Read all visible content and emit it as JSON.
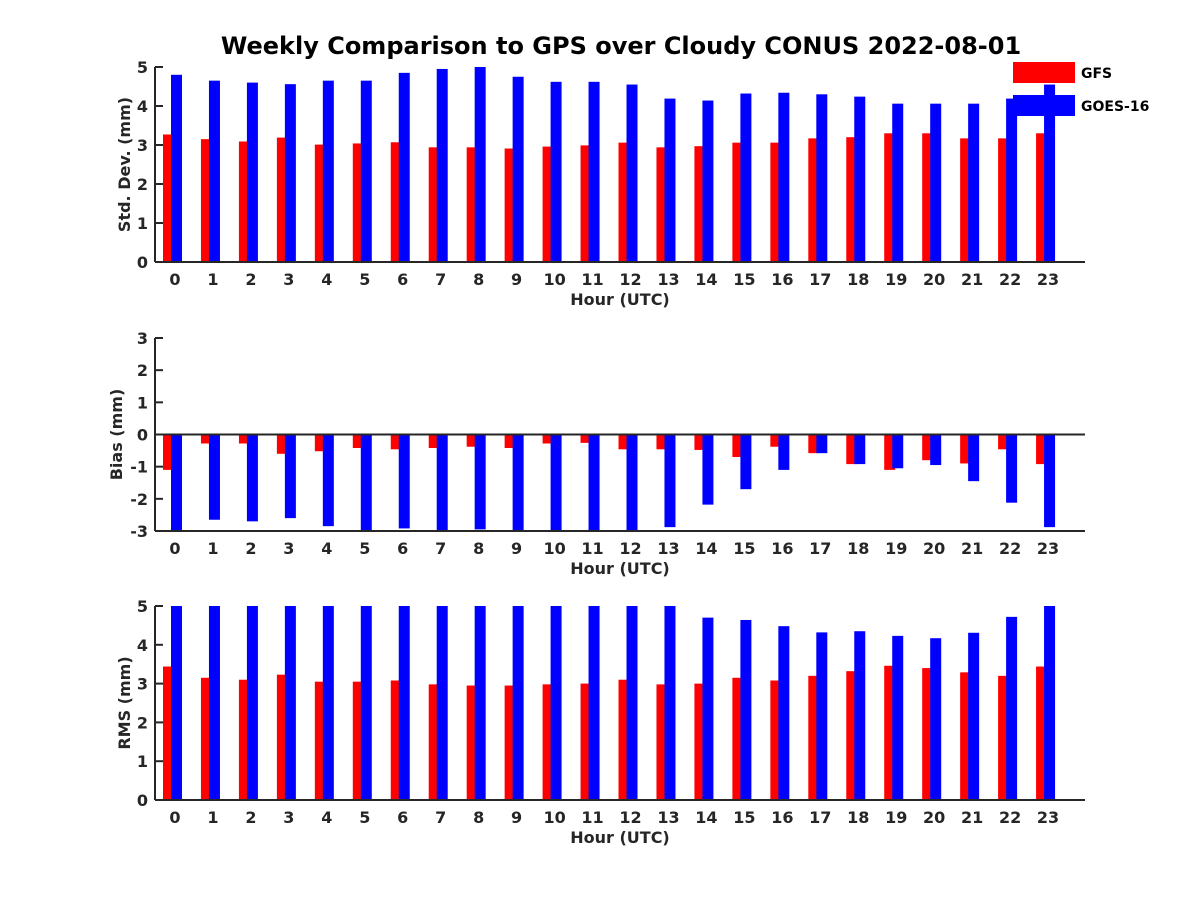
{
  "title": "Weekly Comparison to GPS over Cloudy CONUS 2022-08-01",
  "legend": [
    {
      "label": "GFS",
      "color": "#ff0000"
    },
    {
      "label": "GOES-16",
      "color": "#0000ff"
    }
  ],
  "chart_data": [
    {
      "type": "bar",
      "title": "Weekly Comparison to GPS over Cloudy CONUS 2022-08-01",
      "xlabel": "Hour (UTC)",
      "ylabel": "Std. Dev. (mm)",
      "categories": [
        "0",
        "1",
        "2",
        "3",
        "4",
        "5",
        "6",
        "7",
        "8",
        "9",
        "10",
        "11",
        "12",
        "13",
        "14",
        "15",
        "16",
        "17",
        "18",
        "19",
        "20",
        "21",
        "22",
        "23"
      ],
      "ylim": [
        0,
        5
      ],
      "yticks": [
        0,
        1,
        2,
        3,
        4,
        5
      ],
      "legend_position": "top-right",
      "grid": false,
      "series": [
        {
          "name": "GFS",
          "color": "#ff0000",
          "values": [
            3.27,
            3.15,
            3.09,
            3.19,
            3.01,
            3.04,
            3.07,
            2.94,
            2.94,
            2.91,
            2.96,
            2.99,
            3.06,
            2.94,
            2.97,
            3.06,
            3.06,
            3.17,
            3.2,
            3.3,
            3.3,
            3.17,
            3.17,
            3.3
          ]
        },
        {
          "name": "GOES-16",
          "color": "#0000ff",
          "values": [
            4.8,
            4.65,
            4.6,
            4.56,
            4.65,
            4.65,
            4.85,
            4.95,
            5.0,
            4.75,
            4.62,
            4.62,
            4.55,
            4.19,
            4.14,
            4.32,
            4.34,
            4.3,
            4.24,
            4.06,
            4.06,
            4.06,
            4.19,
            4.55
          ]
        }
      ]
    },
    {
      "type": "bar",
      "xlabel": "Hour (UTC)",
      "ylabel": "Bias (mm)",
      "categories": [
        "0",
        "1",
        "2",
        "3",
        "4",
        "5",
        "6",
        "7",
        "8",
        "9",
        "10",
        "11",
        "12",
        "13",
        "14",
        "15",
        "16",
        "17",
        "18",
        "19",
        "20",
        "21",
        "22",
        "23"
      ],
      "ylim": [
        -3,
        3
      ],
      "yticks": [
        -3,
        -2,
        -1,
        0,
        1,
        2,
        3
      ],
      "grid": false,
      "series": [
        {
          "name": "GFS",
          "color": "#ff0000",
          "values": [
            -1.1,
            -0.28,
            -0.28,
            -0.6,
            -0.52,
            -0.42,
            -0.46,
            -0.42,
            -0.38,
            -0.42,
            -0.28,
            -0.26,
            -0.46,
            -0.46,
            -0.48,
            -0.7,
            -0.38,
            -0.58,
            -0.92,
            -1.1,
            -0.8,
            -0.9,
            -0.46,
            -0.92
          ]
        },
        {
          "name": "GOES-16",
          "color": "#0000ff",
          "values": [
            -3.0,
            -2.65,
            -2.7,
            -2.6,
            -2.85,
            -3.0,
            -2.92,
            -3.0,
            -2.95,
            -3.0,
            -3.0,
            -3.0,
            -3.0,
            -2.88,
            -2.18,
            -1.7,
            -1.1,
            -0.58,
            -0.92,
            -1.05,
            -0.95,
            -1.45,
            -2.12,
            -2.88
          ]
        }
      ]
    },
    {
      "type": "bar",
      "xlabel": "Hour (UTC)",
      "ylabel": "RMS (mm)",
      "categories": [
        "0",
        "1",
        "2",
        "3",
        "4",
        "5",
        "6",
        "7",
        "8",
        "9",
        "10",
        "11",
        "12",
        "13",
        "14",
        "15",
        "16",
        "17",
        "18",
        "19",
        "20",
        "21",
        "22",
        "23"
      ],
      "ylim": [
        0,
        5
      ],
      "yticks": [
        0,
        1,
        2,
        3,
        4,
        5
      ],
      "grid": false,
      "series": [
        {
          "name": "GFS",
          "color": "#ff0000",
          "values": [
            3.44,
            3.15,
            3.1,
            3.23,
            3.05,
            3.05,
            3.08,
            2.98,
            2.95,
            2.95,
            2.98,
            3.0,
            3.1,
            2.98,
            3.0,
            3.15,
            3.08,
            3.2,
            3.32,
            3.46,
            3.4,
            3.29,
            3.2,
            3.44
          ]
        },
        {
          "name": "GOES-16",
          "color": "#0000ff",
          "values": [
            5.0,
            5.0,
            5.0,
            5.0,
            5.0,
            5.0,
            5.0,
            5.0,
            5.0,
            5.0,
            5.0,
            5.0,
            5.0,
            5.0,
            4.7,
            4.64,
            4.48,
            4.32,
            4.35,
            4.23,
            4.17,
            4.31,
            4.72,
            5.0
          ]
        }
      ]
    }
  ]
}
